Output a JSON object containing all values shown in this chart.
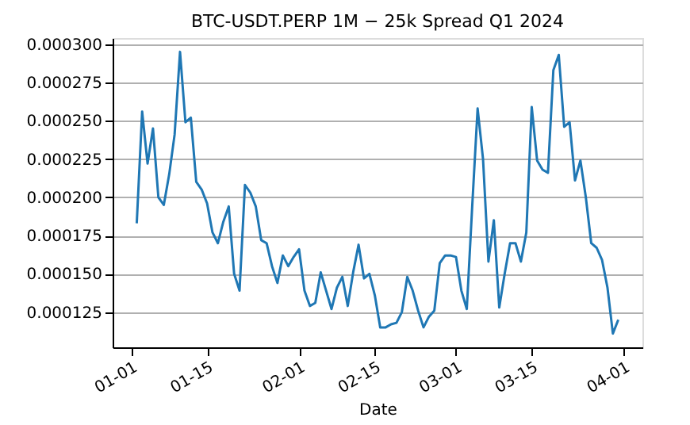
{
  "chart_data": {
    "type": "line",
    "title": "BTC-USDT.PERP 1M − 25k Spread Q1 2024",
    "xlabel": "Date",
    "x": [
      "2024-01-02",
      "2024-01-03",
      "2024-01-04",
      "2024-01-05",
      "2024-01-06",
      "2024-01-07",
      "2024-01-08",
      "2024-01-09",
      "2024-01-10",
      "2024-01-11",
      "2024-01-12",
      "2024-01-13",
      "2024-01-14",
      "2024-01-15",
      "2024-01-16",
      "2024-01-17",
      "2024-01-18",
      "2024-01-19",
      "2024-01-20",
      "2024-01-21",
      "2024-01-22",
      "2024-01-23",
      "2024-01-24",
      "2024-01-25",
      "2024-01-26",
      "2024-01-27",
      "2024-01-28",
      "2024-01-29",
      "2024-01-30",
      "2024-01-31",
      "2024-02-01",
      "2024-02-02",
      "2024-02-03",
      "2024-02-04",
      "2024-02-05",
      "2024-02-06",
      "2024-02-07",
      "2024-02-08",
      "2024-02-09",
      "2024-02-10",
      "2024-02-11",
      "2024-02-12",
      "2024-02-13",
      "2024-02-14",
      "2024-02-15",
      "2024-02-16",
      "2024-02-17",
      "2024-02-18",
      "2024-02-19",
      "2024-02-20",
      "2024-02-21",
      "2024-02-22",
      "2024-02-23",
      "2024-02-24",
      "2024-02-25",
      "2024-02-26",
      "2024-02-27",
      "2024-02-28",
      "2024-02-29",
      "2024-03-01",
      "2024-03-02",
      "2024-03-03",
      "2024-03-04",
      "2024-03-05",
      "2024-03-06",
      "2024-03-07",
      "2024-03-08",
      "2024-03-09",
      "2024-03-10",
      "2024-03-11",
      "2024-03-12",
      "2024-03-13",
      "2024-03-14",
      "2024-03-15",
      "2024-03-16",
      "2024-03-17",
      "2024-03-18",
      "2024-03-19",
      "2024-03-20",
      "2024-03-21",
      "2024-03-22",
      "2024-03-23",
      "2024-03-24",
      "2024-03-25",
      "2024-03-26",
      "2024-03-27",
      "2024-03-28",
      "2024-03-29",
      "2024-03-30",
      "2024-03-31"
    ],
    "series": [
      {
        "color": "#1f77b4",
        "values": [
          0.000183,
          0.000256,
          0.000222,
          0.000245,
          0.0002,
          0.000195,
          0.000215,
          0.000241,
          0.000295,
          0.000249,
          0.000252,
          0.00021,
          0.000205,
          0.000196,
          0.000177,
          0.00017,
          0.000184,
          0.000194,
          0.00015,
          0.000139,
          0.000208,
          0.000203,
          0.000194,
          0.000172,
          0.00017,
          0.000155,
          0.000144,
          0.000162,
          0.000155,
          0.000161,
          0.000166,
          0.000139,
          0.000129,
          0.000131,
          0.000151,
          0.000139,
          0.000127,
          0.000141,
          0.000148,
          0.000129,
          0.000151,
          0.000169,
          0.000147,
          0.00015,
          0.000136,
          0.000115,
          0.000115,
          0.000117,
          0.000118,
          0.000125,
          0.000148,
          0.000139,
          0.000126,
          0.000115,
          0.000122,
          0.000126,
          0.000157,
          0.000162,
          0.000162,
          0.000161,
          0.000139,
          0.000127,
          0.000194,
          0.000258,
          0.000225,
          0.000158,
          0.000185,
          0.000128,
          0.00015,
          0.00017,
          0.00017,
          0.000158,
          0.000177,
          0.000259,
          0.000224,
          0.000218,
          0.000216,
          0.000283,
          0.000293,
          0.000246,
          0.000249,
          0.000211,
          0.000224,
          0.0002,
          0.00017,
          0.000167,
          0.000159,
          0.000141,
          0.000111,
          0.00012
        ]
      }
    ],
    "xlim": [
      "2023-12-28T13:00",
      "2024-04-04T11:00"
    ],
    "xticks": [
      {
        "value": "2024-01-01",
        "label": "01-01"
      },
      {
        "value": "2024-01-15",
        "label": "01-15"
      },
      {
        "value": "2024-02-01",
        "label": "02-01"
      },
      {
        "value": "2024-02-15",
        "label": "02-15"
      },
      {
        "value": "2024-03-01",
        "label": "03-01"
      },
      {
        "value": "2024-03-15",
        "label": "03-15"
      },
      {
        "value": "2024-04-01",
        "label": "04-01"
      }
    ],
    "ylim": [
      0.000102,
      0.000304
    ],
    "yticks": [
      {
        "value": 0.000125,
        "label": "0.000125"
      },
      {
        "value": 0.00015,
        "label": "0.000150"
      },
      {
        "value": 0.000175,
        "label": "0.000175"
      },
      {
        "value": 0.0002,
        "label": "0.000200"
      },
      {
        "value": 0.000225,
        "label": "0.000225"
      },
      {
        "value": 0.00025,
        "label": "0.000250"
      },
      {
        "value": 0.000275,
        "label": "0.000275"
      },
      {
        "value": 0.0003,
        "label": "0.000300"
      }
    ],
    "grid": "y",
    "marker": "none",
    "line_style": "solid"
  }
}
